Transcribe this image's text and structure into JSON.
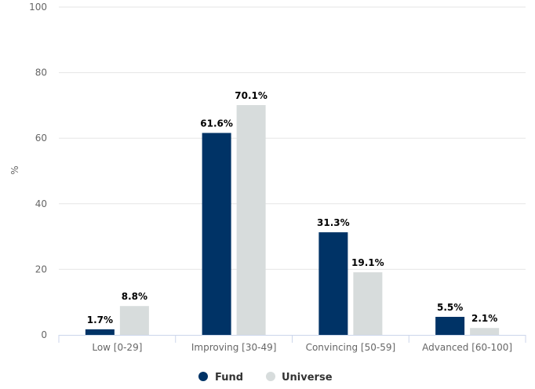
{
  "chart_data": {
    "type": "bar",
    "categories": [
      "Low [0-29]",
      "Improving [30-49]",
      "Convincing [50-59]",
      "Advanced [60-100]"
    ],
    "series": [
      {
        "name": "Fund",
        "color": "#003366",
        "values": [
          1.7,
          61.6,
          31.3,
          5.5
        ],
        "labels": [
          "1.7%",
          "61.6%",
          "31.3%",
          "5.5%"
        ]
      },
      {
        "name": "Universe",
        "color": "#d7dcdc",
        "values": [
          8.8,
          70.1,
          19.1,
          2.1
        ],
        "labels": [
          "8.8%",
          "70.1%",
          "19.1%",
          "2.1%"
        ]
      }
    ],
    "title": "",
    "xlabel": "",
    "ylabel": "%",
    "ylim": [
      0,
      100
    ],
    "yticks": [
      0,
      20,
      40,
      60,
      80,
      100
    ],
    "grid": true,
    "legend_position": "bottom-center"
  }
}
